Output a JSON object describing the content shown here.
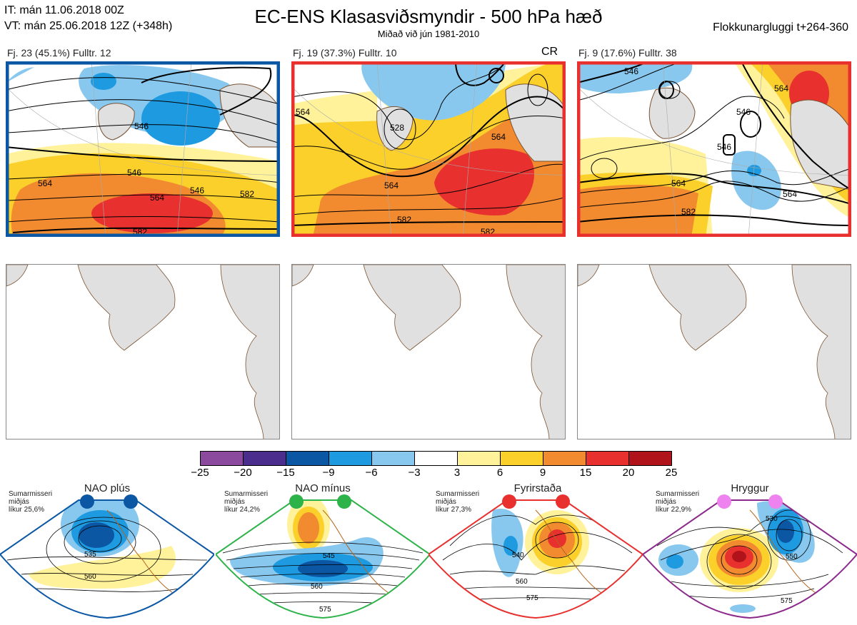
{
  "header": {
    "line1": "IT: mán 11.06.2018 00Z",
    "line2": "VT: mán 25.06.2018 12Z  (+348h)",
    "title": "EC-ENS Klasasviðsmyndir - 500 hPa hæð",
    "subtitle": "Miðað við jún 1981-2010",
    "window": "Flokkunargluggi t+264-360"
  },
  "clusters": [
    {
      "label": "Fj. 23 (45.1%)   Fulltr. 12",
      "tag": "",
      "frame_color": "#0b57a4",
      "contours": [
        "546",
        "546",
        "546",
        "564",
        "564",
        "582",
        "582"
      ]
    },
    {
      "label": "Fj. 19 (37.3%)   Fulltr. 10",
      "tag": "CR",
      "frame_color": "#e8302e",
      "contours": [
        "564",
        "528",
        "564",
        "564",
        "582",
        "582"
      ]
    },
    {
      "label": "Fj. 9 (17.6%)   Fulltr. 38",
      "tag": "",
      "frame_color": "#e8302e",
      "contours": [
        "546",
        "546",
        "546",
        "564",
        "564",
        "582",
        "564"
      ]
    }
  ],
  "colorbar": {
    "colors": [
      "#8c4a9e",
      "#4a2d8c",
      "#0b57a4",
      "#1e9ae0",
      "#88c8ee",
      "#ffffff",
      "#fff29a",
      "#fcd02a",
      "#f28a30",
      "#e8302e",
      "#b0141a"
    ],
    "labels": [
      "−25",
      "−20",
      "−15",
      "−9",
      "−6",
      "−3",
      "3",
      "6",
      "9",
      "15",
      "20",
      "25"
    ]
  },
  "regimes": [
    {
      "name": "NAO plús",
      "text": [
        "Sumarmisseri",
        "miðjás",
        "líkur 25,6%"
      ],
      "dot_color": "#0b57a4",
      "frame_color": "#0b57a4",
      "contours": [
        "535",
        "560"
      ]
    },
    {
      "name": "NAO mínus",
      "text": [
        "Sumarmisseri",
        "miðjás",
        "líkur 24,2%"
      ],
      "dot_color": "#2db34a",
      "frame_color": "#2db34a",
      "contours": [
        "545",
        "560",
        "575"
      ]
    },
    {
      "name": "Fyrirstaða",
      "text": [
        "Sumarmisseri",
        "miðjás",
        "líkur 27,3%"
      ],
      "dot_color": "#e8302e",
      "frame_color": "#e8302e",
      "contours": [
        "540",
        "560",
        "575"
      ]
    },
    {
      "name": "Hryggur",
      "text": [
        "Sumarmisseri",
        "miðjás",
        "líkur 22,9%"
      ],
      "dot_color": "#ee82ee",
      "frame_color": "#8b2a8b",
      "contours": [
        "530",
        "550",
        "575"
      ]
    }
  ]
}
